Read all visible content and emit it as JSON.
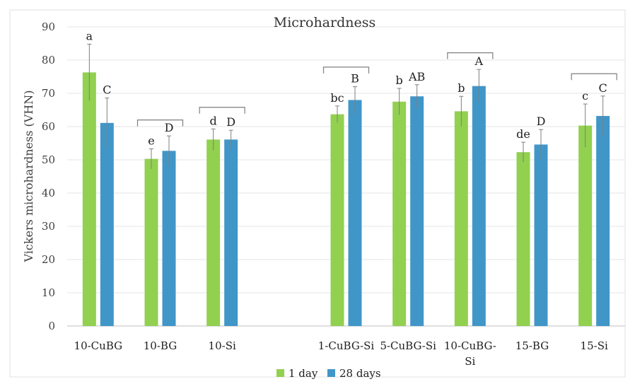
{
  "chart_data": {
    "type": "bar",
    "title": "Microhardness",
    "xlabel": "",
    "ylabel": "Vickers microhardness (VHN)",
    "ylim": [
      0,
      90
    ],
    "yticks": [
      0,
      10,
      20,
      30,
      40,
      50,
      60,
      70,
      80,
      90
    ],
    "grid": true,
    "legend_position": "bottom",
    "categories": [
      {
        "label": "10-CuBG",
        "lines": [
          "10-CuBG"
        ]
      },
      {
        "label": "10-BG",
        "lines": [
          "10-BG"
        ]
      },
      {
        "label": "10-Si",
        "lines": [
          "10-Si"
        ]
      },
      {
        "label": "",
        "lines": [
          ""
        ]
      },
      {
        "label": "1-CuBG-Si",
        "lines": [
          "1-CuBG-Si"
        ]
      },
      {
        "label": "5-CuBG-Si",
        "lines": [
          "5-CuBG-Si"
        ]
      },
      {
        "label": "10-CuBG-Si",
        "lines": [
          "10-CuBG-",
          "Si"
        ]
      },
      {
        "label": "15-BG",
        "lines": [
          "15-BG"
        ]
      },
      {
        "label": "15-Si",
        "lines": [
          "15-Si"
        ]
      }
    ],
    "series": [
      {
        "name": "1 day",
        "color": "#92D050",
        "values": [
          76.3,
          50.3,
          56.1,
          null,
          63.7,
          67.5,
          64.6,
          52.3,
          60.3
        ],
        "errors": [
          8.5,
          3.0,
          3.2,
          null,
          2.5,
          4.0,
          4.5,
          3.0,
          6.5
        ],
        "labels": [
          "a",
          "e",
          "d",
          "",
          "bc",
          "b",
          "b",
          "de",
          "c"
        ]
      },
      {
        "name": "28 days",
        "color": "#4196C8",
        "values": [
          61.1,
          52.7,
          56.1,
          null,
          68.0,
          69.1,
          72.2,
          54.6,
          63.2
        ],
        "errors": [
          7.5,
          4.5,
          2.8,
          null,
          4.0,
          3.5,
          5.0,
          4.5,
          6.0
        ],
        "labels": [
          "C",
          "D",
          "D",
          "",
          "B",
          "AB",
          "A",
          "D",
          "C"
        ]
      }
    ],
    "brackets": [
      {
        "category_index": 1,
        "value": 62.0
      },
      {
        "category_index": 2,
        "value": 65.8
      },
      {
        "category_index": 4,
        "value": 77.9
      },
      {
        "category_index": 6,
        "value": 82.2
      },
      {
        "category_index": 8,
        "value": 75.9
      }
    ]
  }
}
